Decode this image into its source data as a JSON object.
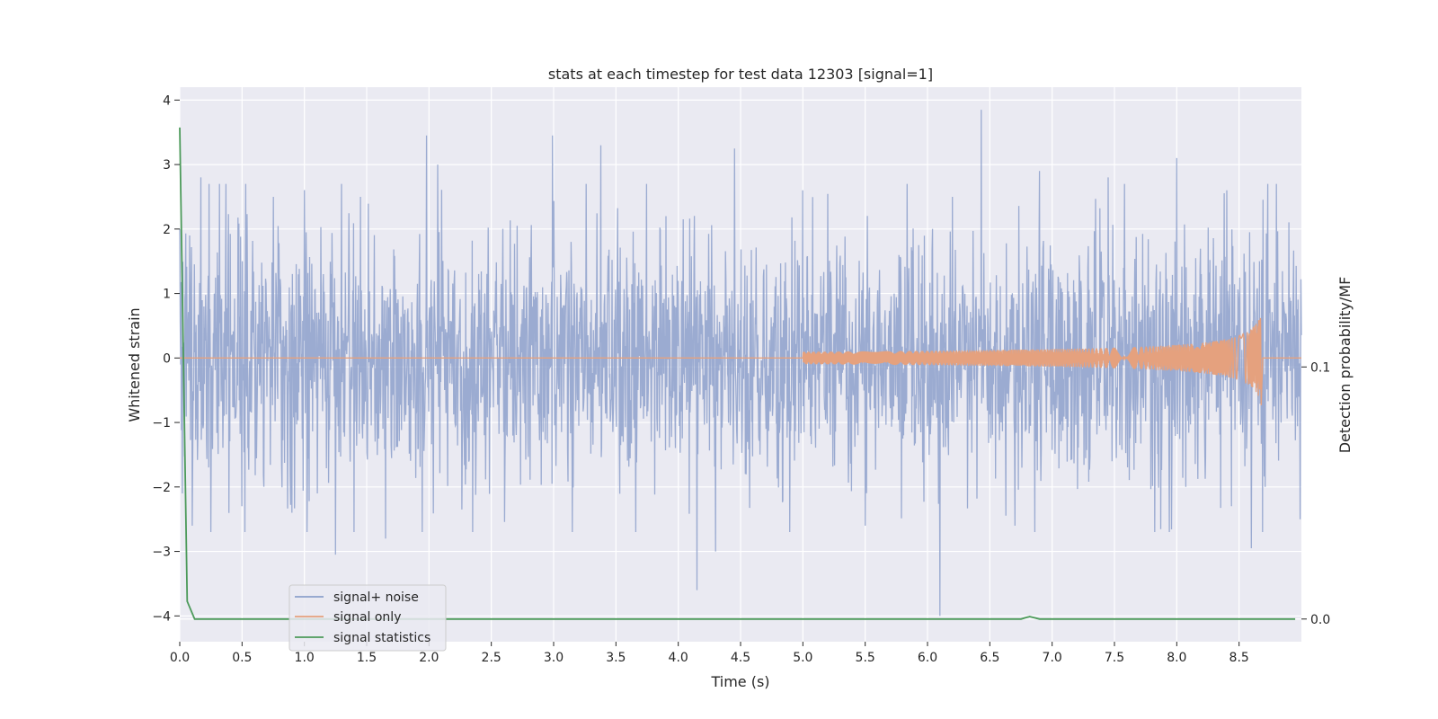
{
  "chart_data": {
    "type": "line",
    "title": "stats at each timestep for test data 12303 [signal=1]",
    "xlabel": "Time (s)",
    "ylabel": "Whitened strain",
    "y2label": "Detection probability/MF",
    "xlim": [
      0.0,
      9.0
    ],
    "ylim": [
      -4.4,
      4.2
    ],
    "y2lim": [
      -0.009,
      0.211
    ],
    "x_ticks": [
      0.0,
      0.5,
      1.0,
      1.5,
      2.0,
      2.5,
      3.0,
      3.5,
      4.0,
      4.5,
      5.0,
      5.5,
      6.0,
      6.5,
      7.0,
      7.5,
      8.0,
      8.5
    ],
    "x_tick_labels": [
      "0.0",
      "0.5",
      "1.0",
      "1.5",
      "2.0",
      "2.5",
      "3.0",
      "3.5",
      "4.0",
      "4.5",
      "5.0",
      "5.5",
      "6.0",
      "6.5",
      "7.0",
      "7.5",
      "8.0",
      "8.5"
    ],
    "y_ticks": [
      -4,
      -3,
      -2,
      -1,
      0,
      1,
      2,
      3,
      4
    ],
    "y_tick_labels": [
      "−4",
      "−3",
      "−2",
      "−1",
      "0",
      "1",
      "2",
      "3",
      "4"
    ],
    "y2_ticks": [
      0.0,
      0.1
    ],
    "y2_tick_labels": [
      "0.0",
      "0.1"
    ],
    "grid": true,
    "legend_position": "lower-left",
    "series": [
      {
        "name": "signal+ noise",
        "color": "#8da0cb",
        "axis": "left",
        "description_points": [
          [
            0.0,
            2.0
          ],
          [
            0.02,
            -2.1
          ],
          [
            0.08,
            1.9
          ],
          [
            0.1,
            -2.6
          ],
          [
            0.17,
            2.8
          ],
          [
            0.25,
            -2.7
          ],
          [
            0.32,
            2.7
          ],
          [
            0.5,
            -2.3
          ],
          [
            0.75,
            2.5
          ],
          [
            0.9,
            -2.4
          ],
          [
            1.25,
            -3.05
          ],
          [
            1.45,
            2.5
          ],
          [
            1.65,
            -2.8
          ],
          [
            1.98,
            3.45
          ],
          [
            2.07,
            3.0
          ],
          [
            2.35,
            -2.7
          ],
          [
            2.99,
            3.45
          ],
          [
            3.15,
            -2.7
          ],
          [
            3.38,
            3.3
          ],
          [
            3.9,
            2.2
          ],
          [
            4.15,
            -3.6
          ],
          [
            4.3,
            -3.0
          ],
          [
            4.45,
            3.25
          ],
          [
            5.0,
            2.6
          ],
          [
            5.5,
            -2.6
          ],
          [
            6.1,
            -4.0
          ],
          [
            6.2,
            2.5
          ],
          [
            6.43,
            3.85
          ],
          [
            6.7,
            -2.6
          ],
          [
            6.9,
            2.9
          ],
          [
            7.45,
            2.8
          ],
          [
            8.0,
            3.1
          ],
          [
            8.4,
            2.6
          ],
          [
            8.6,
            -2.95
          ],
          [
            8.8,
            2.7
          ],
          [
            8.99,
            -2.5
          ]
        ],
        "amplitude_typical": 2.0
      },
      {
        "name": "signal only",
        "color": "#e5a17e",
        "axis": "left",
        "chirp": {
          "start_x": 5.0,
          "end_x": 8.68,
          "peak_amplitude": 0.75
        }
      },
      {
        "name": "signal statistics",
        "color": "#4c9a5a",
        "axis": "right",
        "x": [
          0.0,
          0.06,
          0.12,
          6.75,
          6.82,
          6.9,
          8.95
        ],
        "values": [
          0.195,
          0.007,
          0.0,
          0.0,
          0.001,
          0.0,
          0.0
        ]
      }
    ]
  }
}
